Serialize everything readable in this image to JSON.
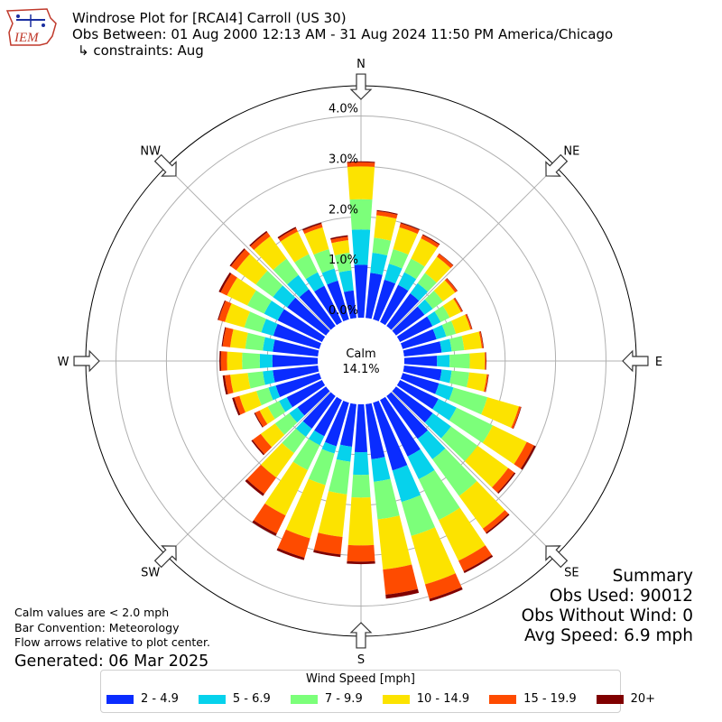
{
  "header": {
    "title": "Windrose Plot for [RCAI4] Carroll (US 30)",
    "subtitle": "Obs Between: 01 Aug 2000 12:13 AM - 31 Aug 2024 11:50 PM America/Chicago",
    "constraints": "↳ constraints: Aug",
    "logo_text": "IEM"
  },
  "summary": {
    "heading": "Summary",
    "obs_used": "Obs Used: 90012",
    "obs_without_wind": "Obs Without Wind: 0",
    "avg_speed": "Avg Speed: 6.9 mph"
  },
  "notes": {
    "calm_note": "Calm values are < 2.0 mph",
    "bar_convention": "Bar Convention: Meteorology",
    "flow_arrows": "Flow arrows relative to plot center.",
    "generated": "Generated: 06 Mar 2025"
  },
  "colors": {
    "bins": [
      "#0a2cff",
      "#06d2ec",
      "#7cff7a",
      "#fce300",
      "#fe4b00",
      "#800000"
    ],
    "grid": "#b0b0b0"
  },
  "chart_data": {
    "type": "windrose",
    "calm_label": "Calm",
    "calm_value": "14.1%",
    "calm_percent": 14.1,
    "radial_max": 4.6,
    "radial_ticks": [
      0,
      1,
      2,
      3,
      4
    ],
    "radial_tick_labels": [
      "0.0%",
      "1.0%",
      "2.0%",
      "3.0%",
      "4.0%"
    ],
    "compass_labels": [
      "N",
      "NE",
      "E",
      "SE",
      "S",
      "SW",
      "W",
      "NW"
    ],
    "legend_title": "Wind Speed [mph]",
    "bins": [
      "2 - 4.9",
      "5 - 6.9",
      "7 - 9.9",
      "10 - 14.9",
      "15 - 19.9",
      "20+"
    ],
    "directions": [
      0,
      10,
      20,
      30,
      40,
      50,
      60,
      70,
      80,
      90,
      100,
      110,
      120,
      130,
      140,
      150,
      160,
      170,
      180,
      190,
      200,
      210,
      220,
      230,
      240,
      250,
      260,
      270,
      280,
      290,
      300,
      310,
      320,
      330,
      340,
      350
    ],
    "cumulative_percent": [
      [
        1.05,
        1.75,
        2.35,
        3.0,
        3.08,
        3.1
      ],
      [
        0.9,
        1.3,
        1.6,
        2.05,
        2.13,
        2.15
      ],
      [
        0.82,
        1.15,
        1.45,
        1.9,
        1.98,
        2.0
      ],
      [
        0.82,
        1.1,
        1.4,
        1.85,
        1.92,
        1.94
      ],
      [
        0.8,
        1.05,
        1.3,
        1.7,
        1.77,
        1.78
      ],
      [
        0.7,
        0.9,
        1.15,
        1.45,
        1.5,
        1.51
      ],
      [
        0.72,
        0.9,
        1.1,
        1.35,
        1.38,
        1.39
      ],
      [
        0.7,
        0.9,
        1.1,
        1.4,
        1.43,
        1.44
      ],
      [
        0.75,
        0.95,
        1.2,
        1.55,
        1.58,
        1.59
      ],
      [
        0.65,
        0.9,
        1.3,
        1.6,
        1.62,
        1.63
      ],
      [
        0.75,
        0.95,
        1.3,
        1.65,
        1.68,
        1.69
      ],
      [
        0.75,
        1.05,
        1.75,
        2.4,
        2.44,
        2.45
      ],
      [
        0.85,
        1.25,
        2.05,
        2.8,
        2.96,
        3.0
      ],
      [
        0.9,
        1.35,
        2.0,
        2.75,
        2.9,
        2.93
      ],
      [
        1.05,
        1.55,
        2.45,
        3.25,
        3.35,
        3.38
      ],
      [
        1.25,
        1.75,
        2.65,
        3.55,
        3.78,
        3.82
      ],
      [
        1.4,
        2.05,
        2.75,
        3.75,
        4.05,
        4.1
      ],
      [
        1.1,
        1.55,
        2.3,
        3.3,
        3.8,
        3.88
      ],
      [
        0.95,
        1.4,
        1.85,
        2.8,
        3.12,
        3.17
      ],
      [
        0.85,
        1.15,
        1.8,
        2.65,
        3.0,
        3.05
      ],
      [
        0.9,
        1.05,
        1.7,
        2.8,
        3.2,
        3.25
      ],
      [
        0.8,
        1.0,
        1.55,
        2.55,
        2.95,
        3.0
      ],
      [
        0.8,
        1.0,
        1.4,
        2.0,
        2.4,
        2.45
      ],
      [
        0.7,
        0.9,
        1.25,
        1.6,
        1.8,
        1.83
      ],
      [
        0.78,
        0.95,
        1.2,
        1.38,
        1.48,
        1.5
      ],
      [
        0.9,
        1.05,
        1.3,
        1.65,
        1.76,
        1.8
      ],
      [
        0.9,
        1.1,
        1.4,
        1.75,
        1.86,
        1.9
      ],
      [
        0.9,
        1.15,
        1.5,
        1.8,
        1.92,
        1.95
      ],
      [
        0.9,
        1.1,
        1.45,
        1.75,
        1.9,
        1.92
      ],
      [
        0.95,
        1.2,
        1.55,
        1.95,
        2.08,
        2.1
      ],
      [
        0.98,
        1.28,
        1.65,
        2.1,
        2.24,
        2.28
      ],
      [
        0.95,
        1.3,
        1.72,
        2.2,
        2.33,
        2.36
      ],
      [
        0.9,
        1.25,
        1.65,
        2.2,
        2.3,
        2.33
      ],
      [
        0.8,
        1.1,
        1.5,
        2.0,
        2.07,
        2.1
      ],
      [
        0.8,
        1.05,
        1.45,
        1.9,
        1.97,
        2.0
      ],
      [
        0.55,
        0.95,
        1.3,
        1.55,
        1.62,
        1.65
      ]
    ]
  }
}
